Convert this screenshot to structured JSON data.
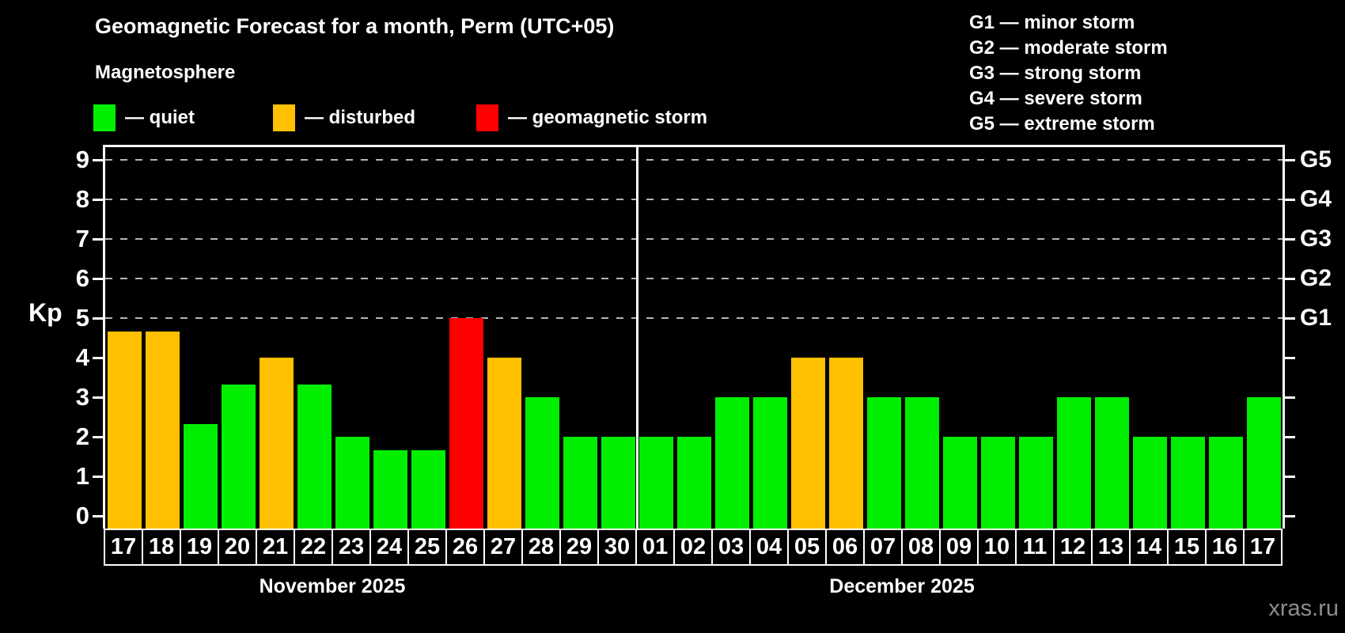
{
  "title": "Geomagnetic Forecast for a month, Perm (UTC+05)",
  "subtitle": "Magnetosphere",
  "watermark": "xras.ru",
  "legend": {
    "items": [
      {
        "key": "quiet",
        "label": "— quiet",
        "color": "#00ef00"
      },
      {
        "key": "disturbed",
        "label": "— disturbed",
        "color": "#ffc000"
      },
      {
        "key": "storm",
        "label": "— geomagnetic storm",
        "color": "#ff0000"
      }
    ]
  },
  "g_legend": {
    "lines": [
      "G1 — minor storm",
      "G2 — moderate storm",
      "G3 — strong storm",
      "G4 — severe storm",
      "G5 — extreme storm"
    ]
  },
  "axis": {
    "y_label": "Kp",
    "y_ticks": [
      0,
      1,
      2,
      3,
      4,
      5,
      6,
      7,
      8,
      9
    ],
    "right_ticks": [
      {
        "value": 5,
        "label": "G1"
      },
      {
        "value": 6,
        "label": "G2"
      },
      {
        "value": 7,
        "label": "G3"
      },
      {
        "value": 8,
        "label": "G4"
      },
      {
        "value": 9,
        "label": "G5"
      }
    ],
    "gridline_values": [
      5,
      6,
      7,
      8,
      9
    ]
  },
  "chart_data": {
    "type": "bar",
    "title": "Geomagnetic Forecast for a month, Perm (UTC+05)",
    "ylabel": "Kp",
    "ylim": [
      0,
      9
    ],
    "grid": "dashed horizontal lines at Kp 5–9 (G1–G5)",
    "legend_position": "top",
    "status_colors": {
      "quiet": "#00ef00",
      "disturbed": "#ffc000",
      "storm": "#ff0000"
    },
    "months": [
      {
        "label": "November 2025",
        "days": [
          {
            "day": "17",
            "kp": 4.67,
            "status": "disturbed"
          },
          {
            "day": "18",
            "kp": 4.67,
            "status": "disturbed"
          },
          {
            "day": "19",
            "kp": 2.33,
            "status": "quiet"
          },
          {
            "day": "20",
            "kp": 3.33,
            "status": "quiet"
          },
          {
            "day": "21",
            "kp": 4.0,
            "status": "disturbed"
          },
          {
            "day": "22",
            "kp": 3.33,
            "status": "quiet"
          },
          {
            "day": "23",
            "kp": 2.0,
            "status": "quiet"
          },
          {
            "day": "24",
            "kp": 1.67,
            "status": "quiet"
          },
          {
            "day": "25",
            "kp": 1.67,
            "status": "quiet"
          },
          {
            "day": "26",
            "kp": 5.0,
            "status": "storm"
          },
          {
            "day": "27",
            "kp": 4.0,
            "status": "disturbed"
          },
          {
            "day": "28",
            "kp": 3.0,
            "status": "quiet"
          },
          {
            "day": "29",
            "kp": 2.0,
            "status": "quiet"
          },
          {
            "day": "30",
            "kp": 2.0,
            "status": "quiet"
          }
        ]
      },
      {
        "label": "December 2025",
        "days": [
          {
            "day": "01",
            "kp": 2.0,
            "status": "quiet"
          },
          {
            "day": "02",
            "kp": 2.0,
            "status": "quiet"
          },
          {
            "day": "03",
            "kp": 3.0,
            "status": "quiet"
          },
          {
            "day": "04",
            "kp": 3.0,
            "status": "quiet"
          },
          {
            "day": "05",
            "kp": 4.0,
            "status": "disturbed"
          },
          {
            "day": "06",
            "kp": 4.0,
            "status": "disturbed"
          },
          {
            "day": "07",
            "kp": 3.0,
            "status": "quiet"
          },
          {
            "day": "08",
            "kp": 3.0,
            "status": "quiet"
          },
          {
            "day": "09",
            "kp": 2.0,
            "status": "quiet"
          },
          {
            "day": "10",
            "kp": 2.0,
            "status": "quiet"
          },
          {
            "day": "11",
            "kp": 2.0,
            "status": "quiet"
          },
          {
            "day": "12",
            "kp": 3.0,
            "status": "quiet"
          },
          {
            "day": "13",
            "kp": 3.0,
            "status": "quiet"
          },
          {
            "day": "14",
            "kp": 2.0,
            "status": "quiet"
          },
          {
            "day": "15",
            "kp": 2.0,
            "status": "quiet"
          },
          {
            "day": "16",
            "kp": 2.0,
            "status": "quiet"
          },
          {
            "day": "17",
            "kp": 3.0,
            "status": "quiet"
          }
        ]
      }
    ]
  }
}
